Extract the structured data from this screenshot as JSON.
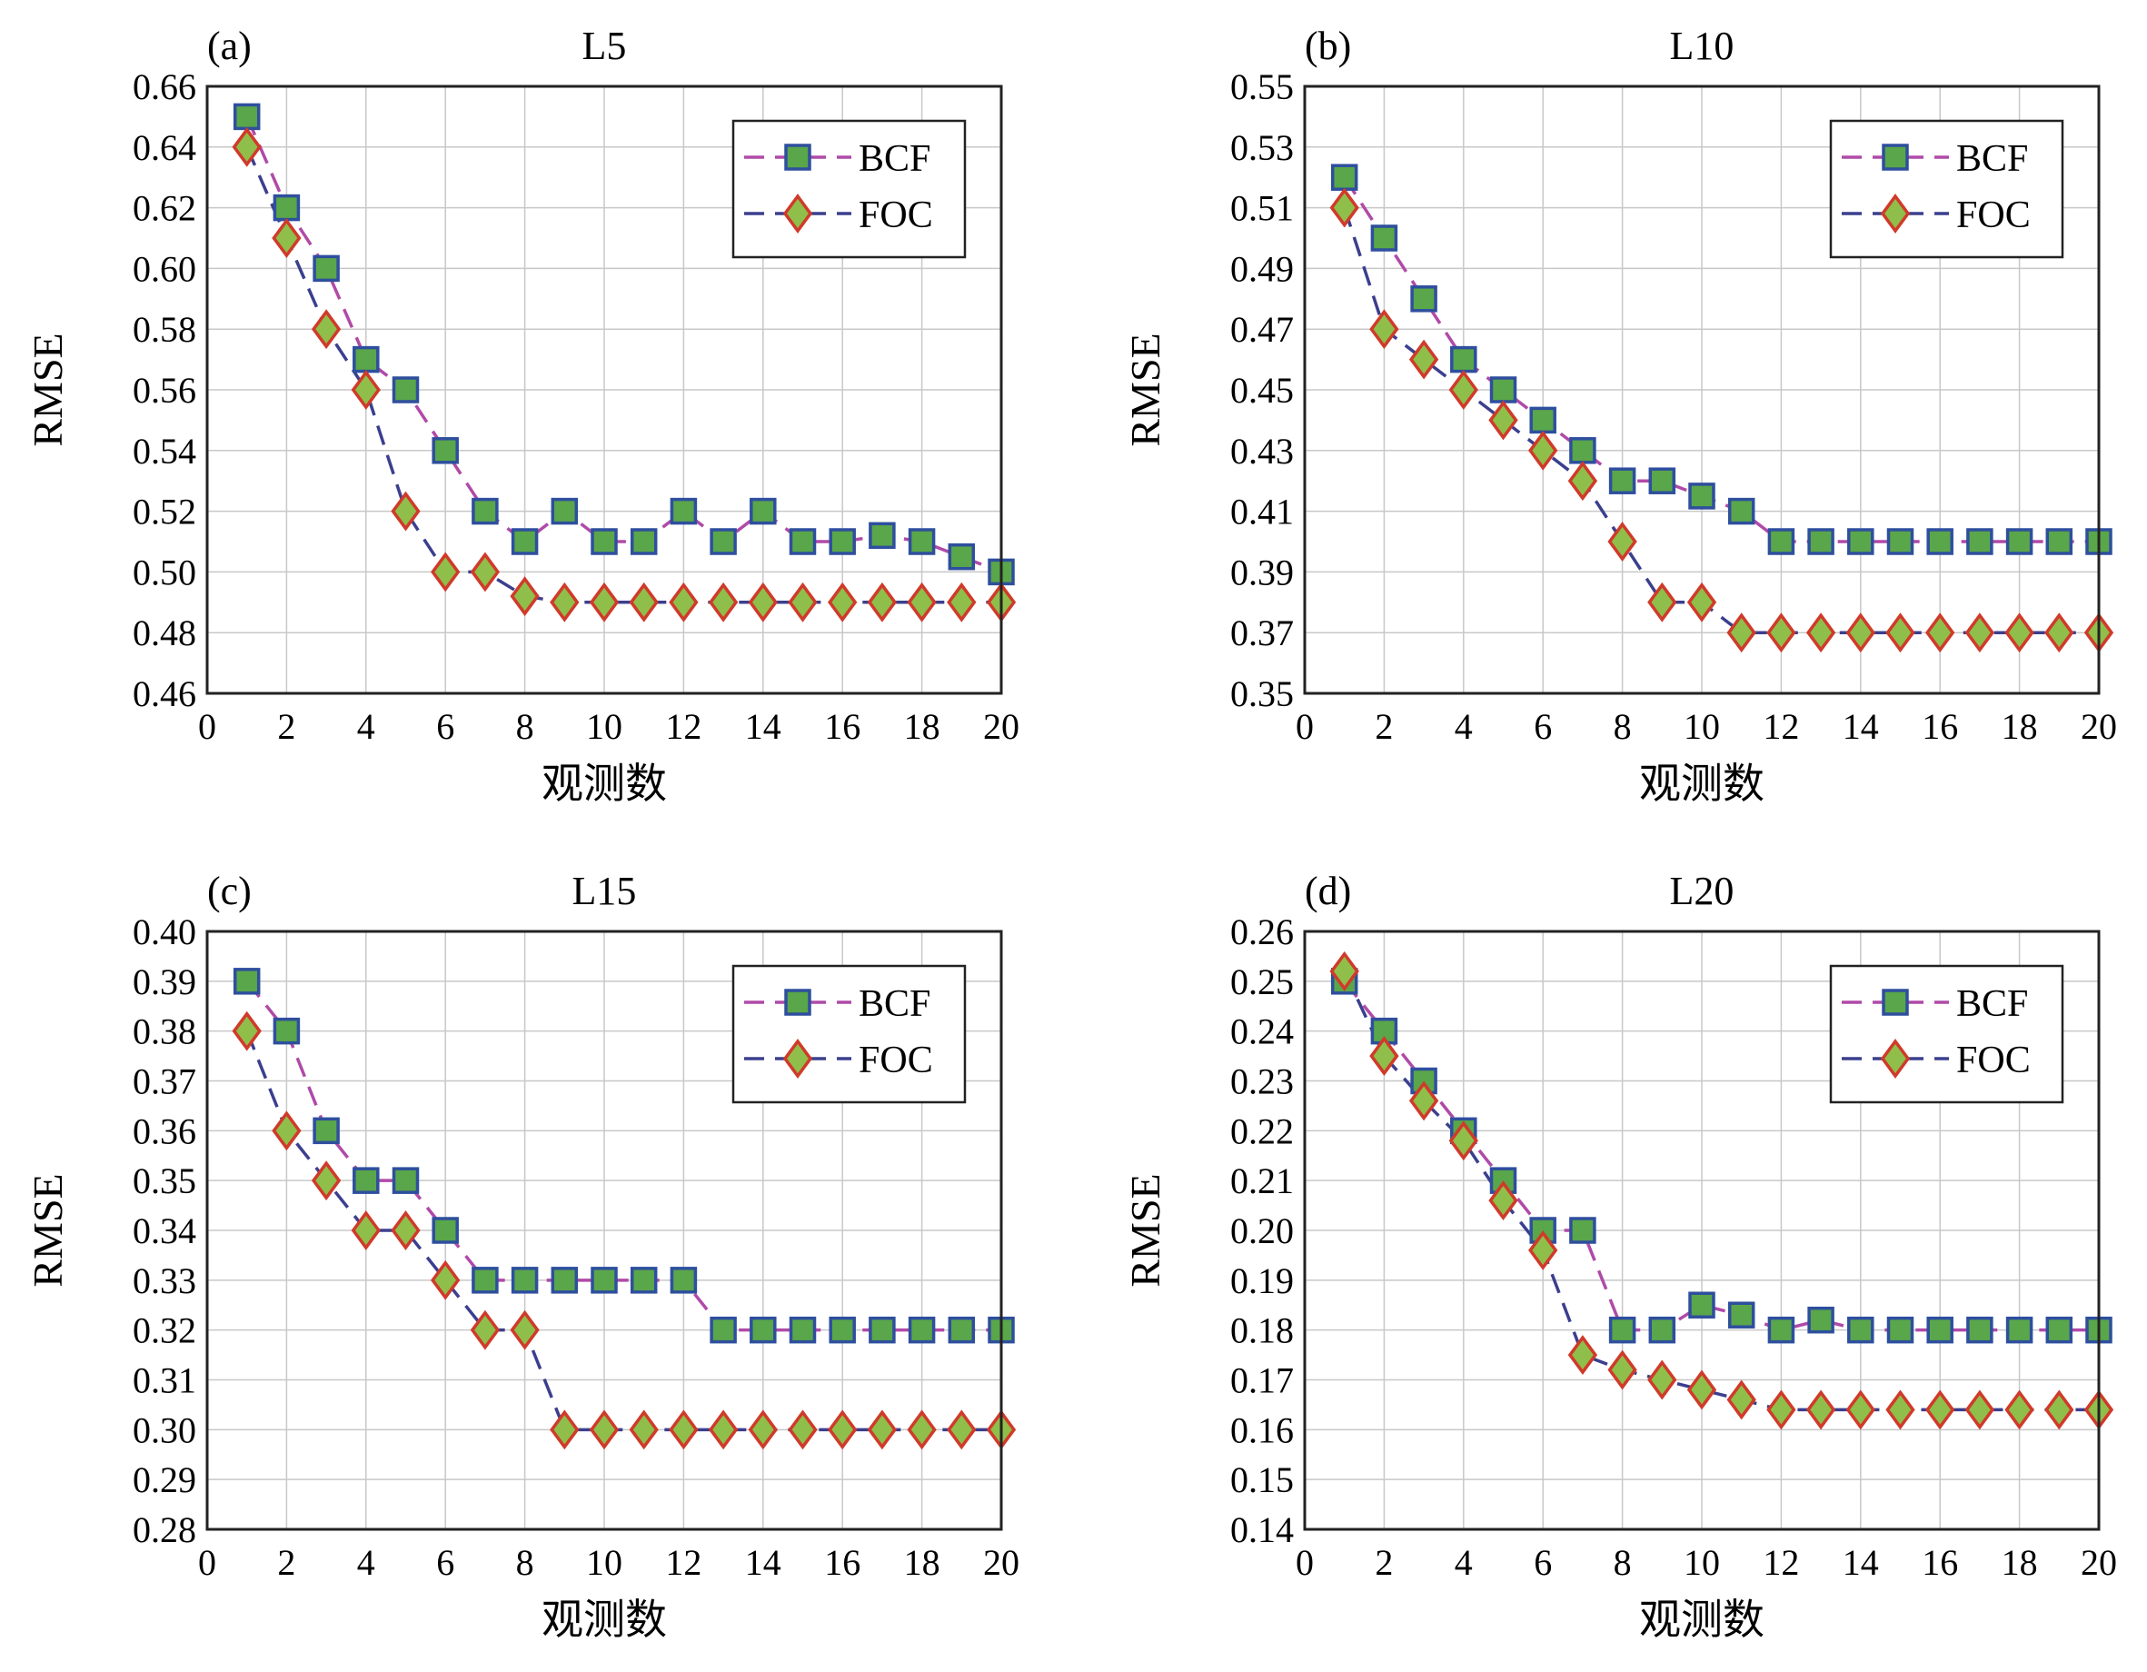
{
  "chart_data": [
    {
      "type": "line",
      "panel_label": "(a)",
      "title": "L5",
      "xlabel": "观测数",
      "ylabel": "RMSE",
      "xlim": [
        0,
        20
      ],
      "ylim": [
        0.46,
        0.66
      ],
      "xticks": [
        "0",
        "2",
        "4",
        "6",
        "8",
        "10",
        "12",
        "14",
        "16",
        "18",
        "20"
      ],
      "yticks": [
        "0.46",
        "0.48",
        "0.50",
        "0.52",
        "0.54",
        "0.56",
        "0.58",
        "0.60",
        "0.62",
        "0.64",
        "0.66"
      ],
      "grid": true,
      "legend_position": "top-right",
      "x": [
        1,
        2,
        3,
        4,
        5,
        6,
        7,
        8,
        9,
        10,
        11,
        12,
        13,
        14,
        15,
        16,
        17,
        18,
        19,
        20
      ],
      "series": [
        {
          "name": "BCF",
          "line_color": "#b04aa8",
          "marker": "square",
          "marker_fill": "#5aa64a",
          "marker_edge": "#2e4f9e",
          "values": [
            0.65,
            0.62,
            0.6,
            0.57,
            0.56,
            0.54,
            0.52,
            0.51,
            0.52,
            0.51,
            0.51,
            0.52,
            0.51,
            0.52,
            0.51,
            0.51,
            0.512,
            0.51,
            0.505,
            0.5
          ]
        },
        {
          "name": "FOC",
          "line_color": "#3b3f8e",
          "marker": "diamond",
          "marker_fill": "#8fbf4a",
          "marker_edge": "#d03a2a",
          "values": [
            0.64,
            0.61,
            0.58,
            0.56,
            0.52,
            0.5,
            0.5,
            0.492,
            0.49,
            0.49,
            0.49,
            0.49,
            0.49,
            0.49,
            0.49,
            0.49,
            0.49,
            0.49,
            0.49,
            0.49
          ]
        }
      ]
    },
    {
      "type": "line",
      "panel_label": "(b)",
      "title": "L10",
      "xlabel": "观测数",
      "ylabel": "RMSE",
      "xlim": [
        0,
        20
      ],
      "ylim": [
        0.35,
        0.55
      ],
      "xticks": [
        "0",
        "2",
        "4",
        "6",
        "8",
        "10",
        "12",
        "14",
        "16",
        "18",
        "20"
      ],
      "yticks": [
        "0.35",
        "0.37",
        "0.39",
        "0.41",
        "0.43",
        "0.45",
        "0.47",
        "0.49",
        "0.51",
        "0.53",
        "0.55"
      ],
      "grid": true,
      "legend_position": "top-right",
      "x": [
        1,
        2,
        3,
        4,
        5,
        6,
        7,
        8,
        9,
        10,
        11,
        12,
        13,
        14,
        15,
        16,
        17,
        18,
        19,
        20
      ],
      "series": [
        {
          "name": "BCF",
          "line_color": "#b04aa8",
          "marker": "square",
          "marker_fill": "#5aa64a",
          "marker_edge": "#2e4f9e",
          "values": [
            0.52,
            0.5,
            0.48,
            0.46,
            0.45,
            0.44,
            0.43,
            0.42,
            0.42,
            0.415,
            0.41,
            0.4,
            0.4,
            0.4,
            0.4,
            0.4,
            0.4,
            0.4,
            0.4,
            0.4
          ]
        },
        {
          "name": "FOC",
          "line_color": "#3b3f8e",
          "marker": "diamond",
          "marker_fill": "#8fbf4a",
          "marker_edge": "#d03a2a",
          "values": [
            0.51,
            0.47,
            0.46,
            0.45,
            0.44,
            0.43,
            0.42,
            0.4,
            0.38,
            0.38,
            0.37,
            0.37,
            0.37,
            0.37,
            0.37,
            0.37,
            0.37,
            0.37,
            0.37,
            0.37
          ]
        }
      ]
    },
    {
      "type": "line",
      "panel_label": "(c)",
      "title": "L15",
      "xlabel": "观测数",
      "ylabel": "RMSE",
      "xlim": [
        0,
        20
      ],
      "ylim": [
        0.28,
        0.4
      ],
      "xticks": [
        "0",
        "2",
        "4",
        "6",
        "8",
        "10",
        "12",
        "14",
        "16",
        "18",
        "20"
      ],
      "yticks": [
        "0.28",
        "0.29",
        "0.30",
        "0.31",
        "0.32",
        "0.33",
        "0.34",
        "0.35",
        "0.36",
        "0.37",
        "0.38",
        "0.39",
        "0.40"
      ],
      "grid": true,
      "legend_position": "top-right",
      "x": [
        1,
        2,
        3,
        4,
        5,
        6,
        7,
        8,
        9,
        10,
        11,
        12,
        13,
        14,
        15,
        16,
        17,
        18,
        19,
        20
      ],
      "series": [
        {
          "name": "BCF",
          "line_color": "#b04aa8",
          "marker": "square",
          "marker_fill": "#5aa64a",
          "marker_edge": "#2e4f9e",
          "values": [
            0.39,
            0.38,
            0.36,
            0.35,
            0.35,
            0.34,
            0.33,
            0.33,
            0.33,
            0.33,
            0.33,
            0.33,
            0.32,
            0.32,
            0.32,
            0.32,
            0.32,
            0.32,
            0.32,
            0.32
          ]
        },
        {
          "name": "FOC",
          "line_color": "#3b3f8e",
          "marker": "diamond",
          "marker_fill": "#8fbf4a",
          "marker_edge": "#d03a2a",
          "values": [
            0.38,
            0.36,
            0.35,
            0.34,
            0.34,
            0.33,
            0.32,
            0.32,
            0.3,
            0.3,
            0.3,
            0.3,
            0.3,
            0.3,
            0.3,
            0.3,
            0.3,
            0.3,
            0.3,
            0.3
          ]
        }
      ]
    },
    {
      "type": "line",
      "panel_label": "(d)",
      "title": "L20",
      "xlabel": "观测数",
      "ylabel": "RMSE",
      "xlim": [
        0,
        20
      ],
      "ylim": [
        0.14,
        0.26
      ],
      "xticks": [
        "0",
        "2",
        "4",
        "6",
        "8",
        "10",
        "12",
        "14",
        "16",
        "18",
        "20"
      ],
      "yticks": [
        "0.14",
        "0.15",
        "0.16",
        "0.17",
        "0.18",
        "0.19",
        "0.20",
        "0.21",
        "0.22",
        "0.23",
        "0.24",
        "0.25",
        "0.26"
      ],
      "grid": true,
      "legend_position": "top-right",
      "x": [
        1,
        2,
        3,
        4,
        5,
        6,
        7,
        8,
        9,
        10,
        11,
        12,
        13,
        14,
        15,
        16,
        17,
        18,
        19,
        20
      ],
      "series": [
        {
          "name": "BCF",
          "line_color": "#b04aa8",
          "marker": "square",
          "marker_fill": "#5aa64a",
          "marker_edge": "#2e4f9e",
          "values": [
            0.25,
            0.24,
            0.23,
            0.22,
            0.21,
            0.2,
            0.2,
            0.18,
            0.18,
            0.185,
            0.183,
            0.18,
            0.182,
            0.18,
            0.18,
            0.18,
            0.18,
            0.18,
            0.18,
            0.18
          ]
        },
        {
          "name": "FOC",
          "line_color": "#3b3f8e",
          "marker": "diamond",
          "marker_fill": "#8fbf4a",
          "marker_edge": "#d03a2a",
          "values": [
            0.252,
            0.235,
            0.226,
            0.218,
            0.206,
            0.196,
            0.175,
            0.172,
            0.17,
            0.168,
            0.166,
            0.164,
            0.164,
            0.164,
            0.164,
            0.164,
            0.164,
            0.164,
            0.164,
            0.164
          ]
        }
      ]
    }
  ]
}
